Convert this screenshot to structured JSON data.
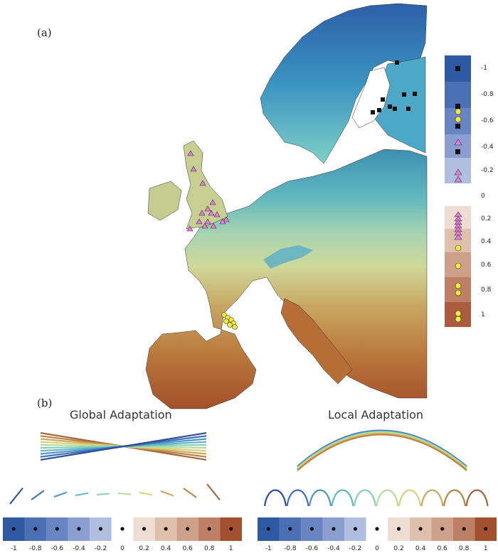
{
  "labels": {
    "panel_a": "(a)",
    "panel_b": "(b)"
  },
  "titles": {
    "global": "Global Adaptation",
    "local": "Local Adaptation"
  },
  "scale": {
    "ticks": [
      "-1",
      "-0.8",
      "-0.6",
      "-0.4",
      "-0.2",
      "0",
      "0.2",
      "0.4",
      "0.6",
      "0.8",
      "1"
    ],
    "colors": [
      "#2f5aa3",
      "#4a70b3",
      "#6685c2",
      "#8a9fcf",
      "#b0bfdf",
      "#d8ddee",
      "#ffffff",
      "#efddd3",
      "#dfc0ad",
      "#cea08a",
      "#bd7f66",
      "#ab5c3e",
      "#a2502d"
    ]
  },
  "map_legend": {
    "ticks": [
      "-1",
      "-0.8",
      "-0.6",
      "-0.4",
      "-0.2",
      "0",
      "0.2",
      "0.4",
      "0.6",
      "0.8",
      "1"
    ]
  },
  "markers": {
    "square": "#111111",
    "circle": "#f2ea3c",
    "triangle": "#e87ae0"
  }
}
